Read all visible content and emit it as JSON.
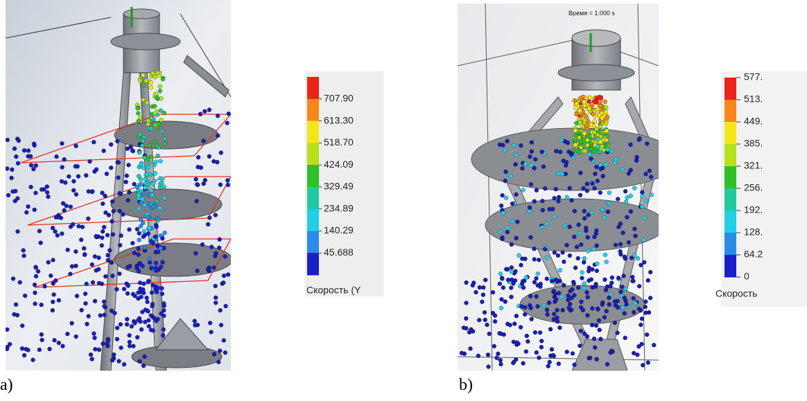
{
  "panels": [
    {
      "label": "a)",
      "legend": {
        "ticks": [
          "707.90",
          "613.30",
          "518.70",
          "424.09",
          "329.49",
          "234.89",
          "140.29",
          "45.688"
        ],
        "title": "Скорость (Y"
      }
    },
    {
      "label": "b)",
      "time_label": "Время = 1.000 s",
      "legend": {
        "ticks": [
          "577.",
          "513.",
          "449.",
          "385.",
          "321.",
          "256.",
          "192.",
          "128.",
          "64.2",
          "0"
        ],
        "title": "Скорость"
      }
    }
  ]
}
